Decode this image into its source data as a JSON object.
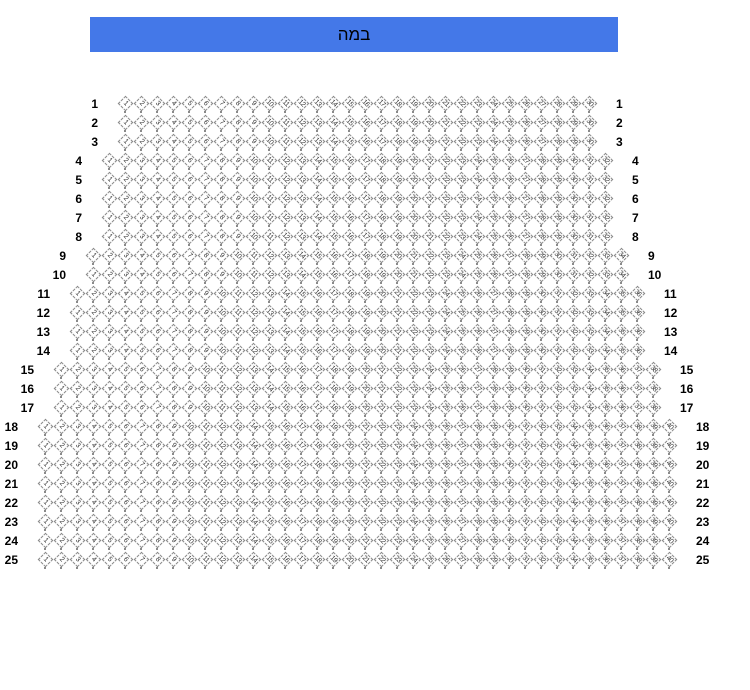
{
  "stage": {
    "label": "במה"
  },
  "colors": {
    "stage_bg": "#4478e8",
    "stage_text": "#000000",
    "seat_border": "#8a8a8a",
    "seat_number": "#333333",
    "row_label": "#000000"
  },
  "seating": {
    "rows": [
      {
        "row": "1",
        "seats": 30
      },
      {
        "row": "2",
        "seats": 30
      },
      {
        "row": "3",
        "seats": 30
      },
      {
        "row": "4",
        "seats": 32
      },
      {
        "row": "5",
        "seats": 32
      },
      {
        "row": "6",
        "seats": 32
      },
      {
        "row": "7",
        "seats": 32
      },
      {
        "row": "8",
        "seats": 32
      },
      {
        "row": "9",
        "seats": 34
      },
      {
        "row": "10",
        "seats": 34
      },
      {
        "row": "11",
        "seats": 36
      },
      {
        "row": "12",
        "seats": 36
      },
      {
        "row": "13",
        "seats": 36
      },
      {
        "row": "14",
        "seats": 36
      },
      {
        "row": "15",
        "seats": 38
      },
      {
        "row": "16",
        "seats": 38
      },
      {
        "row": "17",
        "seats": 38
      },
      {
        "row": "18",
        "seats": 40
      },
      {
        "row": "19",
        "seats": 40
      },
      {
        "row": "20",
        "seats": 40
      },
      {
        "row": "21",
        "seats": 40
      },
      {
        "row": "22",
        "seats": 40
      },
      {
        "row": "23",
        "seats": 40
      },
      {
        "row": "24",
        "seats": 40
      },
      {
        "row": "25",
        "seats": 40
      }
    ]
  }
}
